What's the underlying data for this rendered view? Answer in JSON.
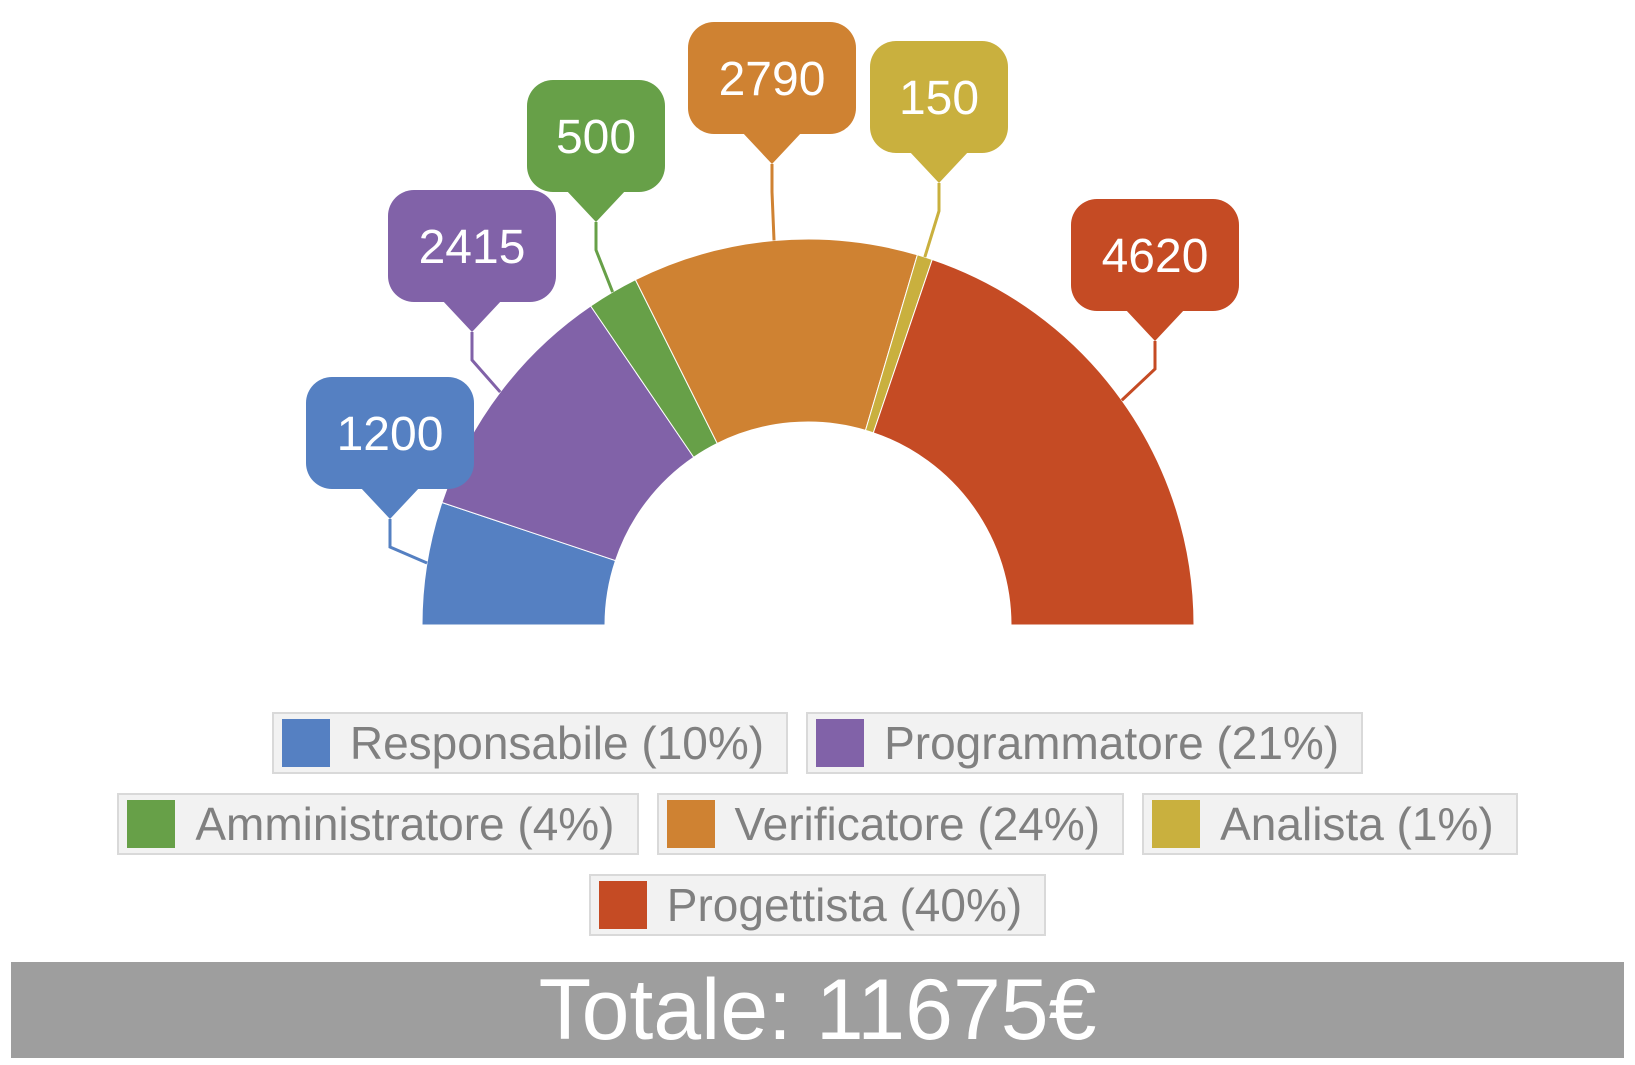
{
  "chart_data": {
    "type": "pie",
    "subtype": "half-donut",
    "series": [
      {
        "name": "Responsabile",
        "value": 1200,
        "percent": "10%",
        "color": "#5580c2"
      },
      {
        "name": "Programmatore",
        "value": 2415,
        "percent": "21%",
        "color": "#8162a8"
      },
      {
        "name": "Amministratore",
        "value": 500,
        "percent": "4%",
        "color": "#67a048"
      },
      {
        "name": "Verificatore",
        "value": 2790,
        "percent": "24%",
        "color": "#cf8232"
      },
      {
        "name": "Analista",
        "value": 150,
        "percent": "1%",
        "color": "#c9b03e"
      },
      {
        "name": "Progettista",
        "value": 4620,
        "percent": "40%",
        "color": "#c54b24"
      }
    ],
    "data_labels": [
      "1200",
      "2415",
      "500",
      "2790",
      "150",
      "4620"
    ],
    "legend_labels": [
      "Responsabile (10%)",
      "Programmatore (21%)",
      "Amministratore (4%)",
      "Verificatore (24%)",
      "Analista (1%)",
      "Progettista (40%)"
    ],
    "legend_placement": "bottom"
  },
  "total": {
    "text": "Totale: 11675€",
    "bar_color": "#9e9e9e"
  }
}
